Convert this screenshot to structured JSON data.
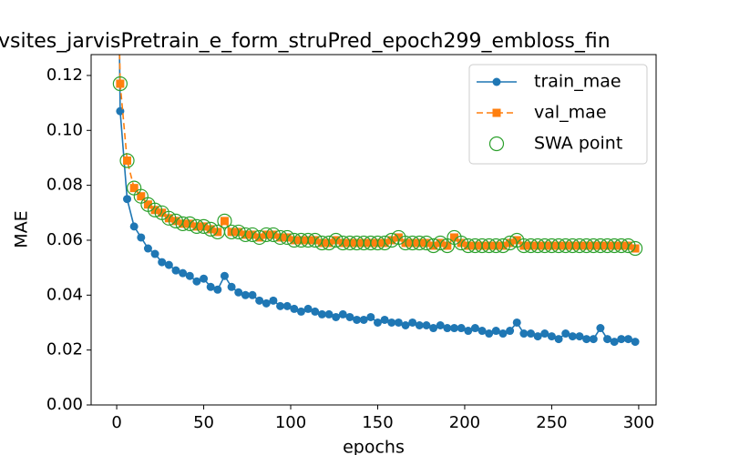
{
  "chart_data": {
    "type": "line",
    "title": "vsites_jarvisPretrain_e_form_struPred_epoch299_embloss_fin",
    "x_label": "epochs",
    "y_label": "MAE",
    "xlim": [
      -14.7,
      310
    ],
    "ylim": [
      0,
      0.1276
    ],
    "xticks": [
      0,
      50,
      100,
      150,
      200,
      250,
      300
    ],
    "yticks": [
      {
        "value": 0,
        "label": "0.00"
      },
      {
        "value": 0.02,
        "label": "0.02"
      },
      {
        "value": 0.04,
        "label": "0.04"
      },
      {
        "value": 0.06,
        "label": "0.06"
      },
      {
        "value": 0.08,
        "label": "0.08"
      },
      {
        "value": 0.1,
        "label": "0.10"
      },
      {
        "value": 0.12,
        "label": "0.12"
      }
    ],
    "legend": "upper right",
    "series": [
      {
        "name": "train_mae",
        "color": "#1f77b4",
        "marker": "circle",
        "line": "solid",
        "x": [
          1,
          2,
          6,
          10,
          14,
          18,
          22,
          26,
          30,
          34,
          38,
          42,
          46,
          50,
          54,
          58,
          62,
          66,
          70,
          74,
          78,
          82,
          86,
          90,
          94,
          98,
          102,
          106,
          110,
          114,
          118,
          122,
          126,
          130,
          134,
          138,
          142,
          146,
          150,
          154,
          158,
          162,
          166,
          170,
          174,
          178,
          182,
          186,
          190,
          194,
          198,
          202,
          206,
          210,
          214,
          218,
          222,
          226,
          230,
          234,
          238,
          242,
          246,
          250,
          254,
          258,
          262,
          266,
          270,
          274,
          278,
          282,
          286,
          290,
          294,
          298
        ],
        "values": [
          0.16,
          0.107,
          0.075,
          0.065,
          0.061,
          0.057,
          0.055,
          0.052,
          0.051,
          0.049,
          0.048,
          0.047,
          0.045,
          0.046,
          0.043,
          0.042,
          0.047,
          0.043,
          0.041,
          0.04,
          0.04,
          0.038,
          0.037,
          0.038,
          0.036,
          0.036,
          0.035,
          0.034,
          0.035,
          0.034,
          0.033,
          0.033,
          0.032,
          0.033,
          0.032,
          0.031,
          0.031,
          0.032,
          0.03,
          0.031,
          0.03,
          0.03,
          0.029,
          0.03,
          0.029,
          0.029,
          0.028,
          0.029,
          0.028,
          0.028,
          0.028,
          0.027,
          0.028,
          0.027,
          0.026,
          0.027,
          0.026,
          0.027,
          0.03,
          0.026,
          0.026,
          0.025,
          0.026,
          0.025,
          0.024,
          0.026,
          0.025,
          0.025,
          0.024,
          0.024,
          0.028,
          0.024,
          0.023,
          0.024,
          0.024,
          0.023
        ]
      },
      {
        "name": "val_mae",
        "color": "#ff7f0e",
        "marker": "square",
        "line": "dashed",
        "x": [
          1,
          2,
          6,
          10,
          14,
          18,
          22,
          26,
          30,
          34,
          38,
          42,
          46,
          50,
          54,
          58,
          62,
          66,
          70,
          74,
          78,
          82,
          86,
          90,
          94,
          98,
          102,
          106,
          110,
          114,
          118,
          122,
          126,
          130,
          134,
          138,
          142,
          146,
          150,
          154,
          158,
          162,
          166,
          170,
          174,
          178,
          182,
          186,
          190,
          194,
          198,
          202,
          206,
          210,
          214,
          218,
          222,
          226,
          230,
          234,
          238,
          242,
          246,
          250,
          254,
          258,
          262,
          266,
          270,
          274,
          278,
          282,
          286,
          290,
          294,
          298
        ],
        "values": [
          0.15,
          0.117,
          0.089,
          0.079,
          0.076,
          0.073,
          0.071,
          0.07,
          0.068,
          0.067,
          0.066,
          0.066,
          0.065,
          0.065,
          0.064,
          0.063,
          0.067,
          0.063,
          0.063,
          0.062,
          0.062,
          0.061,
          0.062,
          0.062,
          0.061,
          0.061,
          0.06,
          0.06,
          0.06,
          0.06,
          0.059,
          0.059,
          0.06,
          0.059,
          0.059,
          0.059,
          0.059,
          0.059,
          0.059,
          0.059,
          0.06,
          0.061,
          0.059,
          0.059,
          0.059,
          0.059,
          0.058,
          0.059,
          0.058,
          0.061,
          0.059,
          0.058,
          0.058,
          0.058,
          0.058,
          0.058,
          0.058,
          0.059,
          0.06,
          0.058,
          0.058,
          0.058,
          0.058,
          0.058,
          0.058,
          0.058,
          0.058,
          0.058,
          0.058,
          0.058,
          0.058,
          0.058,
          0.058,
          0.058,
          0.058,
          0.057
        ]
      },
      {
        "name": "SWA point",
        "color": "#2ca02c",
        "marker": "open-circle",
        "line": "none",
        "x": [
          2,
          6,
          10,
          14,
          18,
          22,
          26,
          30,
          34,
          38,
          42,
          46,
          50,
          54,
          58,
          62,
          66,
          70,
          74,
          78,
          82,
          86,
          90,
          94,
          98,
          102,
          106,
          110,
          114,
          118,
          122,
          126,
          130,
          134,
          138,
          142,
          146,
          150,
          154,
          158,
          162,
          166,
          170,
          174,
          178,
          182,
          186,
          190,
          194,
          198,
          202,
          206,
          210,
          214,
          218,
          222,
          226,
          230,
          234,
          238,
          242,
          246,
          250,
          254,
          258,
          262,
          266,
          270,
          274,
          278,
          282,
          286,
          290,
          294,
          298
        ],
        "values": [
          0.117,
          0.089,
          0.079,
          0.076,
          0.073,
          0.071,
          0.07,
          0.068,
          0.067,
          0.066,
          0.066,
          0.065,
          0.065,
          0.064,
          0.063,
          0.067,
          0.063,
          0.063,
          0.062,
          0.062,
          0.061,
          0.062,
          0.062,
          0.061,
          0.061,
          0.06,
          0.06,
          0.06,
          0.06,
          0.059,
          0.059,
          0.06,
          0.059,
          0.059,
          0.059,
          0.059,
          0.059,
          0.059,
          0.059,
          0.06,
          0.061,
          0.059,
          0.059,
          0.059,
          0.059,
          0.058,
          0.059,
          0.058,
          0.061,
          0.059,
          0.058,
          0.058,
          0.058,
          0.058,
          0.058,
          0.058,
          0.059,
          0.06,
          0.058,
          0.058,
          0.058,
          0.058,
          0.058,
          0.058,
          0.058,
          0.058,
          0.058,
          0.058,
          0.058,
          0.058,
          0.058,
          0.058,
          0.058,
          0.058,
          0.057
        ]
      }
    ]
  }
}
